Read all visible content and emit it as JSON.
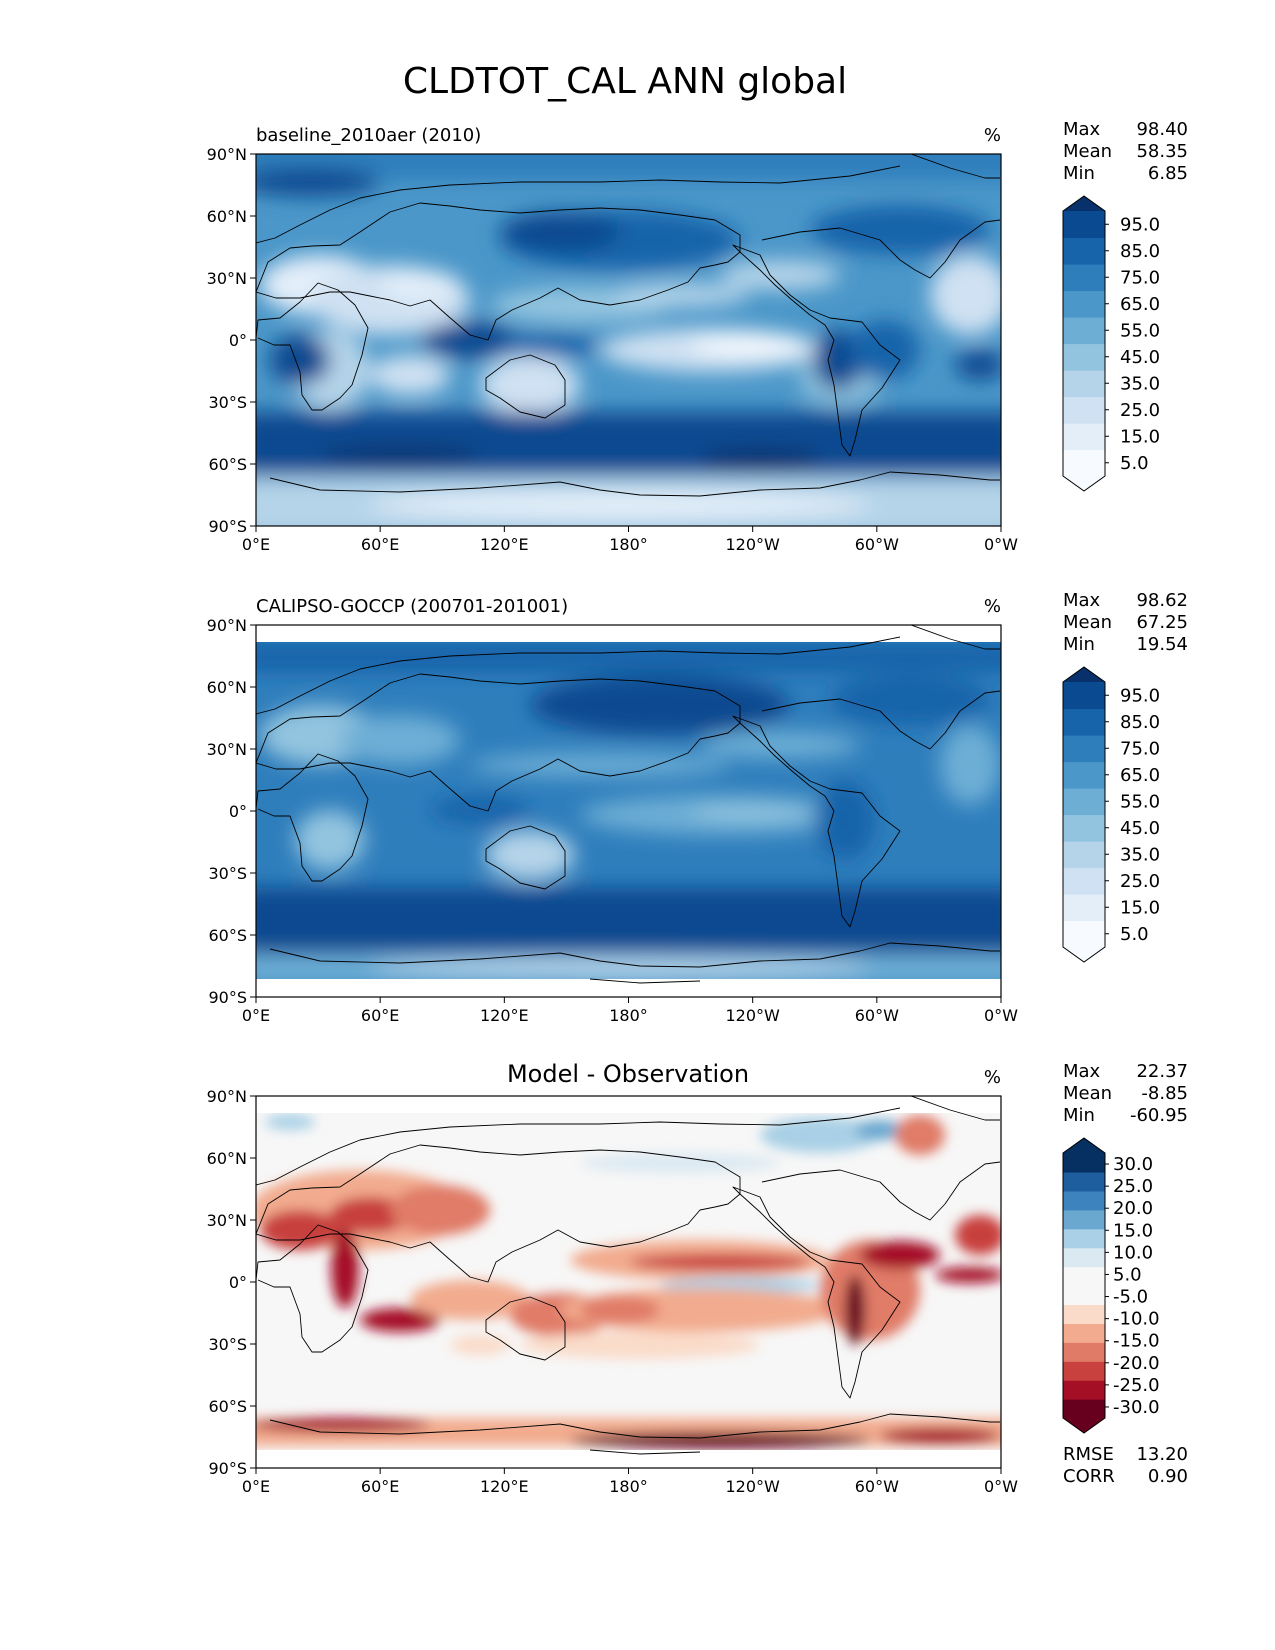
{
  "title": "CLDTOT_CAL ANN global",
  "x_ticks": [
    "0°E",
    "60°E",
    "120°E",
    "180°",
    "120°W",
    "60°W",
    "0°W"
  ],
  "y_ticks": [
    "90°N",
    "60°N",
    "30°N",
    "0°",
    "30°S",
    "60°S",
    "90°S"
  ],
  "chart_data": [
    {
      "type": "heatmap",
      "title": "baseline_2010aer (2010)",
      "units": "%",
      "xlim": [
        0,
        360
      ],
      "ylim": [
        -90,
        90
      ],
      "colormap": "Blues",
      "stats": [
        {
          "label": "Max",
          "value": "98.40"
        },
        {
          "label": "Mean",
          "value": "58.35"
        },
        {
          "label": "Min",
          "value": "6.85"
        }
      ],
      "colorbar": {
        "levels": [
          0,
          10,
          20,
          30,
          40,
          50,
          60,
          70,
          80,
          90,
          100
        ],
        "labels": [
          "95.0",
          "85.0",
          "75.0",
          "65.0",
          "55.0",
          "45.0",
          "35.0",
          "25.0",
          "15.0",
          "5.0"
        ],
        "colors": [
          "#f7fbff",
          "#e3eef9",
          "#cfe1f2",
          "#b5d4e9",
          "#93c4df",
          "#6daed5",
          "#4b97c9",
          "#2f7ebc",
          "#1864aa",
          "#0a4a90",
          "#08306b"
        ]
      }
    },
    {
      "type": "heatmap",
      "title": "CALIPSO-GOCCP (200701-201001)",
      "units": "%",
      "xlim": [
        0,
        360
      ],
      "ylim": [
        -90,
        90
      ],
      "colormap": "Blues",
      "stats": [
        {
          "label": "Max",
          "value": "98.62"
        },
        {
          "label": "Mean",
          "value": "67.25"
        },
        {
          "label": "Min",
          "value": "19.54"
        }
      ],
      "colorbar": {
        "levels": [
          0,
          10,
          20,
          30,
          40,
          50,
          60,
          70,
          80,
          90,
          100
        ],
        "labels": [
          "95.0",
          "85.0",
          "75.0",
          "65.0",
          "55.0",
          "45.0",
          "35.0",
          "25.0",
          "15.0",
          "5.0"
        ],
        "colors": [
          "#f7fbff",
          "#e3eef9",
          "#cfe1f2",
          "#b5d4e9",
          "#93c4df",
          "#6daed5",
          "#4b97c9",
          "#2f7ebc",
          "#1864aa",
          "#0a4a90",
          "#08306b"
        ]
      }
    },
    {
      "type": "heatmap",
      "title": "Model - Observation",
      "units": "%",
      "xlim": [
        0,
        360
      ],
      "ylim": [
        -90,
        90
      ],
      "colormap": "RdBu_r",
      "stats": [
        {
          "label": "Max",
          "value": "22.37"
        },
        {
          "label": "Mean",
          "value": "-8.85"
        },
        {
          "label": "Min",
          "value": "-60.95"
        }
      ],
      "extra_stats": [
        {
          "label": "RMSE",
          "value": "13.20"
        },
        {
          "label": "CORR",
          "value": "0.90"
        }
      ],
      "colorbar": {
        "levels": [
          -35,
          -30,
          -25,
          -20,
          -15,
          -10,
          -5,
          5,
          10,
          15,
          20,
          25,
          30,
          35
        ],
        "labels": [
          "30.0",
          "25.0",
          "20.0",
          "15.0",
          "10.0",
          "5.0",
          "-5.0",
          "-10.0",
          "-15.0",
          "-20.0",
          "-25.0",
          "-30.0"
        ],
        "colors": [
          "#67001f",
          "#a50f26",
          "#c8413e",
          "#e07b67",
          "#f2ab8e",
          "#fadbc9",
          "#f7f7f7",
          "#dbe9f2",
          "#a9d0e6",
          "#6aa8d0",
          "#3d83bd",
          "#1e5e9e",
          "#053061"
        ]
      }
    }
  ]
}
